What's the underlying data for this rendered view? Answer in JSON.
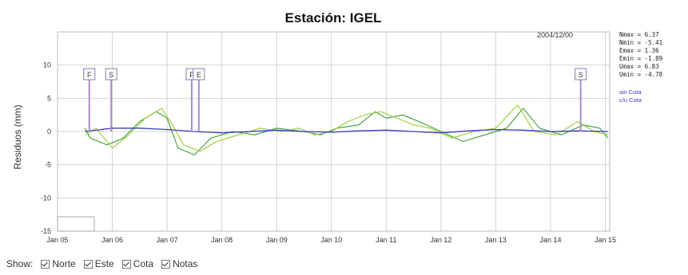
{
  "chart_data": {
    "type": "line",
    "title": "Estación: IGEL",
    "ylabel": "Residuos (mm)",
    "xlabel": "",
    "xlim": [
      2005.0,
      2015.08
    ],
    "ylim": [
      -15,
      15
    ],
    "yticks": [
      -15,
      -10,
      -5,
      0,
      5,
      10
    ],
    "xticks": [
      {
        "label": "Jan 05",
        "x": 2005.0
      },
      {
        "label": "Jan 06",
        "x": 2006.0
      },
      {
        "label": "Jan 07",
        "x": 2007.0
      },
      {
        "label": "Jan 08",
        "x": 2008.0
      },
      {
        "label": "Jan 09",
        "x": 2009.0
      },
      {
        "label": "Jan 10",
        "x": 2010.0
      },
      {
        "label": "Jan 11",
        "x": 2011.0
      },
      {
        "label": "Jan 12",
        "x": 2012.0
      },
      {
        "label": "Jan 13",
        "x": 2013.0
      },
      {
        "label": "Jan 14",
        "x": 2014.0
      },
      {
        "label": "Jan 15",
        "x": 2015.0
      }
    ],
    "grid": true,
    "date_label": "2004/12/00",
    "legend_placement": "bottom-left",
    "series": [
      {
        "color": "#3a9a3a",
        "x": [
          2005.5,
          2005.6,
          2005.9,
          2006.2,
          2006.5,
          2006.8,
          2007.0,
          2007.2,
          2007.5,
          2007.8,
          2008.2,
          2008.6,
          2009.0,
          2009.5,
          2009.8,
          2010.1,
          2010.5,
          2010.8,
          2011.0,
          2011.3,
          2011.6,
          2012.0,
          2012.4,
          2012.8,
          2013.2,
          2013.5,
          2013.8,
          2014.2,
          2014.6,
          2014.9,
          2015.05
        ],
        "y": [
          0.5,
          -1.0,
          -2.0,
          -1.0,
          1.5,
          3.0,
          2.0,
          -2.5,
          -3.5,
          -1.0,
          0.0,
          -0.5,
          0.5,
          0.0,
          -0.5,
          0.5,
          1.0,
          3.0,
          2.0,
          2.5,
          1.5,
          0.0,
          -1.5,
          -0.5,
          0.5,
          3.5,
          0.5,
          -0.5,
          1.0,
          0.5,
          -1.0
        ]
      },
      {
        "color": "#9acd32",
        "x": [
          2005.5,
          2005.7,
          2006.0,
          2006.3,
          2006.6,
          2006.9,
          2007.1,
          2007.3,
          2007.6,
          2007.9,
          2008.3,
          2008.7,
          2009.1,
          2009.4,
          2009.7,
          2010.0,
          2010.3,
          2010.6,
          2010.9,
          2011.2,
          2011.5,
          2011.8,
          2012.2,
          2012.6,
          2013.0,
          2013.4,
          2013.7,
          2014.1,
          2014.5,
          2014.8,
          2015.05
        ],
        "y": [
          -0.5,
          0.5,
          -2.5,
          -0.5,
          2.0,
          3.5,
          1.0,
          -2.0,
          -3.0,
          -1.5,
          -0.5,
          0.5,
          0.0,
          0.5,
          -0.5,
          0.0,
          1.5,
          2.5,
          3.0,
          2.0,
          1.0,
          0.5,
          -1.0,
          0.0,
          0.5,
          4.0,
          0.0,
          -0.5,
          1.5,
          0.0,
          -0.5
        ]
      },
      {
        "color": "#3d3dbf",
        "x": [
          2005.5,
          2006.0,
          2006.5,
          2007.0,
          2007.5,
          2008.0,
          2008.5,
          2009.0,
          2009.5,
          2010.0,
          2010.5,
          2011.0,
          2011.5,
          2012.0,
          2012.5,
          2013.0,
          2013.5,
          2014.0,
          2014.5,
          2015.05
        ],
        "y": [
          0.0,
          0.5,
          0.5,
          0.3,
          0.0,
          -0.2,
          0.0,
          0.2,
          0.0,
          -0.1,
          0.1,
          0.2,
          0.0,
          -0.2,
          0.1,
          0.3,
          0.2,
          0.0,
          0.1,
          0.0
        ]
      }
    ],
    "markers": [
      {
        "label": "F",
        "x": 2005.58
      },
      {
        "label": "S",
        "x": 2005.98
      },
      {
        "label": "F",
        "x": 2007.45
      },
      {
        "label": "E",
        "x": 2007.58
      },
      {
        "label": "S",
        "x": 2014.55
      }
    ],
    "stats": [
      "Nmax = 6.37",
      "Nmin = -5.41",
      "Emax = 1.36",
      "Emin = -1.89",
      "Umax = 6.83",
      "Umin = -4.78"
    ],
    "legend_right": [
      "sin Cota",
      "c/u Cota"
    ]
  },
  "show": {
    "label": "Show:",
    "options": [
      "Norte",
      "Este",
      "Cota",
      "Notas"
    ]
  }
}
